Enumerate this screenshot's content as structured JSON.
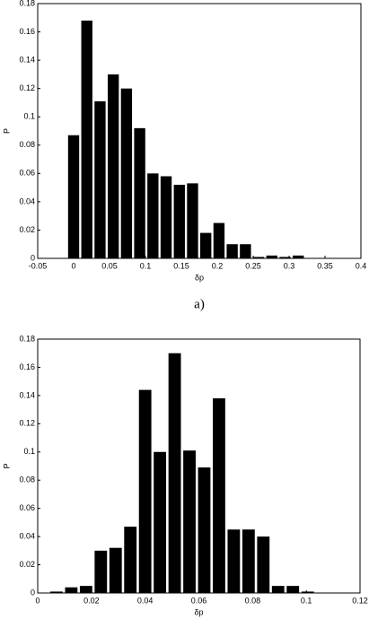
{
  "chart_data": [
    {
      "type": "histogram",
      "caption": "a)",
      "xlabel": "δp",
      "ylabel": "P",
      "color": "#000000",
      "bins": [
        -0.0092,
        0.0092,
        0.0276,
        0.046,
        0.0644,
        0.0828,
        0.1012,
        0.1196,
        0.138,
        0.1564,
        0.1748,
        0.1932,
        0.2116,
        0.23,
        0.2484,
        0.2668,
        0.2852,
        0.3036,
        0.322
      ],
      "values": [
        0.087,
        0.168,
        0.111,
        0.13,
        0.12,
        0.092,
        0.06,
        0.058,
        0.052,
        0.053,
        0.018,
        0.025,
        0.01,
        0.01,
        0.001,
        0.002,
        0.001,
        0.002
      ],
      "xlim": [
        -0.05,
        0.4
      ],
      "xticks": [
        -0.05,
        0,
        0.05,
        0.1,
        0.15,
        0.2,
        0.25,
        0.3,
        0.35,
        0.4
      ],
      "ylim": [
        0,
        0.18
      ],
      "yticks": [
        0,
        0.02,
        0.04,
        0.06,
        0.08,
        0.1,
        0.12,
        0.14,
        0.16,
        0.18
      ]
    },
    {
      "type": "histogram",
      "xlabel": "δp",
      "ylabel": "P",
      "color": "#000000",
      "bins": [
        0.00425,
        0.00975,
        0.01525,
        0.02075,
        0.02625,
        0.03175,
        0.03725,
        0.04275,
        0.04825,
        0.05375,
        0.05925,
        0.06475,
        0.07025,
        0.07575,
        0.08125,
        0.08675,
        0.09225,
        0.09775,
        0.10325
      ],
      "values": [
        0.001,
        0.004,
        0.005,
        0.03,
        0.032,
        0.047,
        0.144,
        0.1,
        0.17,
        0.101,
        0.089,
        0.138,
        0.045,
        0.045,
        0.04,
        0.005,
        0.005,
        0.001
      ],
      "xlim": [
        0,
        0.12
      ],
      "xticks": [
        0,
        0.02,
        0.04,
        0.06,
        0.08,
        0.1,
        0.12
      ],
      "ylim": [
        0,
        0.18
      ],
      "yticks": [
        0,
        0.02,
        0.04,
        0.06,
        0.08,
        0.1,
        0.12,
        0.14,
        0.16,
        0.18
      ]
    }
  ]
}
